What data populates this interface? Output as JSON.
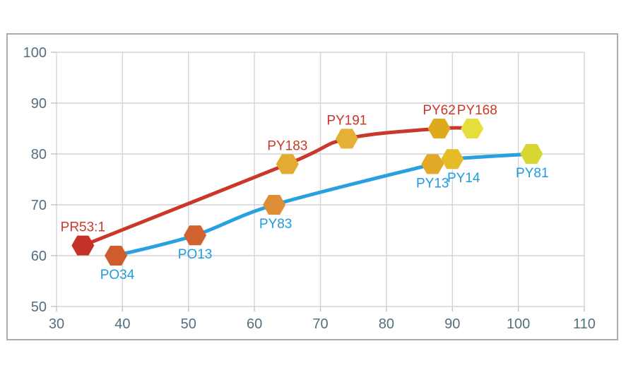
{
  "chart_data": {
    "type": "scatter",
    "subtype": "smoothed-line-with-markers",
    "title": "",
    "xlabel": "",
    "ylabel": "",
    "grid": true,
    "legend": "none",
    "x_axis": {
      "min": 30,
      "max": 110,
      "ticks": [
        30,
        40,
        50,
        60,
        70,
        80,
        90,
        100,
        110
      ]
    },
    "y_axis": {
      "min": 50,
      "max": 100,
      "ticks": [
        100,
        90,
        80,
        70,
        60,
        50
      ]
    },
    "colors": {
      "axis_label": "#53707e",
      "gridline": "#d4d4d4",
      "tick": "#c2c2c2",
      "frame_border": "#ababab",
      "background": "#ffffff"
    },
    "series": [
      {
        "name": "red-series",
        "line_color": "#c9382a",
        "label_color": "#c9382a",
        "points": [
          {
            "label": "PR53:1",
            "x": 34,
            "y": 62,
            "marker_color": "#c43127",
            "label_pos": "above",
            "label_dx": 0
          },
          {
            "label": "PY183",
            "x": 65,
            "y": 78,
            "marker_color": "#e3ab32",
            "label_pos": "above",
            "label_dx": 0
          },
          {
            "label": "PY191",
            "x": 74,
            "y": 83,
            "marker_color": "#e4b134",
            "label_pos": "above",
            "label_dx": 0
          },
          {
            "label": "PY62",
            "x": 88,
            "y": 85,
            "marker_color": "#ddaa1e",
            "label_pos": "above",
            "label_dx": 0
          },
          {
            "label": "PY168",
            "x": 93,
            "y": 85,
            "marker_color": "#e6df3b",
            "label_pos": "above",
            "label_dx": 7
          }
        ]
      },
      {
        "name": "blue-series",
        "line_color": "#29a0df",
        "label_color": "#1f9bdf",
        "points": [
          {
            "label": "PO34",
            "x": 39,
            "y": 60,
            "marker_color": "#cf5c2d",
            "label_pos": "below",
            "label_dx": 2
          },
          {
            "label": "PO13",
            "x": 51,
            "y": 64,
            "marker_color": "#d1612f",
            "label_pos": "below",
            "label_dx": 0
          },
          {
            "label": "PY83",
            "x": 63,
            "y": 70,
            "marker_color": "#df8e38",
            "label_pos": "below",
            "label_dx": 2
          },
          {
            "label": "PY13",
            "x": 87,
            "y": 78,
            "marker_color": "#e2a827",
            "label_pos": "below",
            "label_dx": 0
          },
          {
            "label": "PY14",
            "x": 90,
            "y": 79,
            "marker_color": "#e5bc26",
            "label_pos": "below",
            "label_dx": 16
          },
          {
            "label": "PY81",
            "x": 102,
            "y": 80,
            "marker_color": "#d7d630",
            "label_pos": "below",
            "label_dx": 1
          }
        ]
      }
    ]
  }
}
